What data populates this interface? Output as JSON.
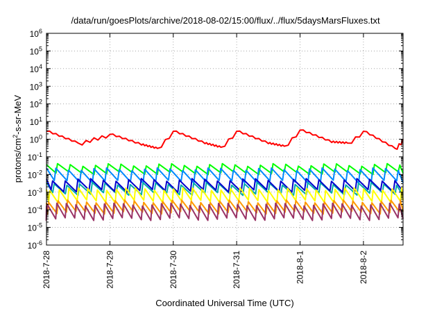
{
  "chart_data": {
    "type": "line",
    "title": "/data/run/goesPlots/archive/2018-08-02/15:00/flux/../flux/5daysMarsFluxes.txt",
    "xlabel": "Coordinated Universal Time (UTC)",
    "ylabel": {
      "prefix": "protons/cm",
      "superscript": "2",
      "suffix": "-s-sr-MeV"
    },
    "y_scale": "log",
    "ylim": [
      1e-06,
      1000000.0
    ],
    "y_ticks": [
      {
        "value": 1e-06,
        "base": "10",
        "exp": "-6"
      },
      {
        "value": 1e-05,
        "base": "10",
        "exp": "-5"
      },
      {
        "value": 0.0001,
        "base": "10",
        "exp": "-4"
      },
      {
        "value": 0.001,
        "base": "10",
        "exp": "-3"
      },
      {
        "value": 0.01,
        "base": "10",
        "exp": "-2"
      },
      {
        "value": 0.1,
        "base": "10",
        "exp": "-1"
      },
      {
        "value": 1.0,
        "base": "10",
        "exp": "0"
      },
      {
        "value": 10.0,
        "base": "10",
        "exp": "1"
      },
      {
        "value": 100.0,
        "base": "10",
        "exp": "2"
      },
      {
        "value": 1000.0,
        "base": "10",
        "exp": "3"
      },
      {
        "value": 10000.0,
        "base": "10",
        "exp": "4"
      },
      {
        "value": 100000.0,
        "base": "10",
        "exp": "5"
      },
      {
        "value": 1000000.0,
        "base": "10",
        "exp": "6"
      }
    ],
    "xlim": [
      "2018-07-28 00:00",
      "2018-08-02 15:00"
    ],
    "x_ticks": [
      "2018-7-28",
      "2018-7-29",
      "2018-7-30",
      "2018-7-31",
      "2018-8-1",
      "2018-8-2"
    ],
    "grid": true,
    "series": [
      {
        "color": "#ff0000",
        "period_days": 1.25,
        "x": [
          "2018-07-28 00:00",
          "2018-07-28 12:00",
          "2018-07-28 18:00",
          "2018-07-29 00:00",
          "2018-07-29 12:00",
          "2018-07-29 18:00",
          "2018-07-30 00:00",
          "2018-07-30 12:00",
          "2018-07-30 18:00",
          "2018-07-31 00:00",
          "2018-07-31 12:00",
          "2018-07-31 18:00",
          "2018-08-01 00:00",
          "2018-08-01 12:00",
          "2018-08-01 18:00",
          "2018-08-02 00:00",
          "2018-08-02 12:00",
          "2018-08-02 15:00"
        ],
        "values": [
          3.0,
          0.6,
          1.2,
          2.0,
          0.5,
          0.3,
          3.0,
          0.6,
          0.35,
          3.0,
          0.6,
          0.4,
          3.5,
          0.7,
          0.6,
          3.0,
          0.3,
          1.0
        ]
      },
      {
        "color": "#00ff00",
        "period_days": 0.2,
        "values": [
          0.035,
          0.012
        ]
      },
      {
        "color": "#0088ff",
        "period_days": 0.2,
        "values": [
          0.02,
          0.004
        ]
      },
      {
        "color": "#00aaaa",
        "period_days": 0.2,
        "values": [
          0.003,
          0.0008
        ]
      },
      {
        "color": "#0000cc",
        "period_days": 0.2,
        "values": [
          0.005,
          0.0012
        ]
      },
      {
        "color": "#ffff00",
        "period_days": 0.15,
        "values": [
          0.0015,
          0.0003
        ]
      },
      {
        "color": "#ff9900",
        "period_days": 0.15,
        "values": [
          0.0003,
          7e-05
        ]
      },
      {
        "color": "#993366",
        "period_days": 0.15,
        "values": [
          0.0002,
          3e-05
        ]
      }
    ]
  }
}
